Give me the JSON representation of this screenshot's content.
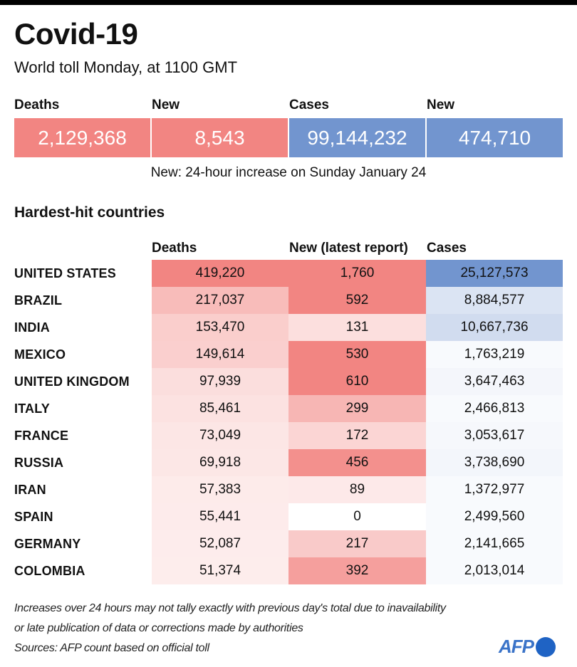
{
  "header": {
    "title": "Covid-19",
    "subtitle": "World toll Monday,  at 1100 GMT"
  },
  "summary": {
    "items": [
      {
        "label": "Deaths",
        "value": "2,129,368",
        "color": "#f28582"
      },
      {
        "label": "New",
        "value": "8,543",
        "color": "#f28582"
      },
      {
        "label": "Cases",
        "value": "99,144,232",
        "color": "#7295cf"
      },
      {
        "label": "New",
        "value": "474,710",
        "color": "#7295cf"
      }
    ],
    "note": "New: 24-hour increase on Sunday January 24"
  },
  "section_title": "Hardest-hit countries",
  "chart_data": {
    "type": "table",
    "title": "Hardest-hit countries",
    "columns": [
      "Deaths",
      "New (latest report)",
      "Cases"
    ],
    "rows": [
      {
        "country": "UNITED STATES",
        "deaths": "419,220",
        "new": "1,760",
        "cases": "25,127,573"
      },
      {
        "country": "BRAZIL",
        "deaths": "217,037",
        "new": "592",
        "cases": "8,884,577"
      },
      {
        "country": "INDIA",
        "deaths": "153,470",
        "new": "131",
        "cases": "10,667,736"
      },
      {
        "country": "MEXICO",
        "deaths": "149,614",
        "new": "530",
        "cases": "1,763,219"
      },
      {
        "country": "UNITED KINGDOM",
        "deaths": "97,939",
        "new": "610",
        "cases": "3,647,463"
      },
      {
        "country": "ITALY",
        "deaths": "85,461",
        "new": "299",
        "cases": "2,466,813"
      },
      {
        "country": "FRANCE",
        "deaths": "73,049",
        "new": "172",
        "cases": "3,053,617"
      },
      {
        "country": "RUSSIA",
        "deaths": "69,918",
        "new": "456",
        "cases": "3,738,690"
      },
      {
        "country": "IRAN",
        "deaths": "57,383",
        "new": "89",
        "cases": "1,372,977"
      },
      {
        "country": "SPAIN",
        "deaths": "55,441",
        "new": "0",
        "cases": "2,499,560"
      },
      {
        "country": "GERMANY",
        "deaths": "52,087",
        "new": "217",
        "cases": "2,141,665"
      },
      {
        "country": "COLOMBIA",
        "deaths": "51,374",
        "new": "392",
        "cases": "2,013,014"
      }
    ],
    "heat_colors": {
      "red_max": "#f28582",
      "blue_max": "#7295cf"
    }
  },
  "footer": {
    "lines": [
      "Increases over 24 hours may not tally exactly with previous day's total due to inavailability",
      "or late publication of data or corrections made by authorities",
      "Sources: AFP count based on official toll"
    ],
    "logo_text": "AFP"
  }
}
